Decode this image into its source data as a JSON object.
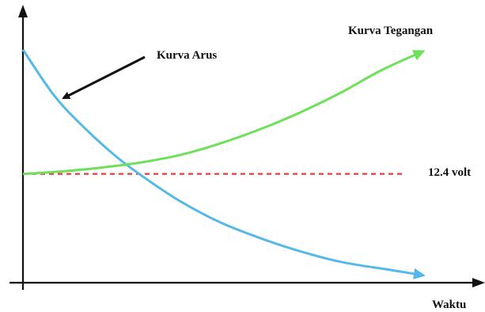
{
  "chart_data": {
    "type": "line",
    "title": "",
    "xlabel": "Waktu",
    "ylabel": "",
    "xlim": [
      0,
      10
    ],
    "ylim": [
      0,
      10
    ],
    "grid": false,
    "series": [
      {
        "name": "Kurva Arus",
        "color": "#56b8e8",
        "x": [
          0,
          0.8,
          1.6,
          2.4,
          3.2,
          4.0,
          5.0,
          6.0,
          7.0,
          8.0,
          9.2,
          10.0
        ],
        "y": [
          9.0,
          7.2,
          5.9,
          4.8,
          3.9,
          3.1,
          2.3,
          1.7,
          1.2,
          0.8,
          0.5,
          0.3
        ]
      },
      {
        "name": "Kurva Tegangan",
        "color": "#6ee05a",
        "x": [
          0,
          1.0,
          2.0,
          3.0,
          4.0,
          5.0,
          6.0,
          7.0,
          8.0,
          9.0,
          10.0
        ],
        "y": [
          4.2,
          4.3,
          4.45,
          4.65,
          4.95,
          5.4,
          5.95,
          6.6,
          7.35,
          8.2,
          8.9
        ]
      }
    ],
    "reference_line": {
      "label": "12.4 volt",
      "y": 4.2,
      "color": "#e83b3b",
      "style": "dashed"
    },
    "annotations": [
      {
        "text": "Kurva Arus",
        "arrow": true
      },
      {
        "text": "Kurva Tegangan",
        "arrow": false
      }
    ]
  }
}
